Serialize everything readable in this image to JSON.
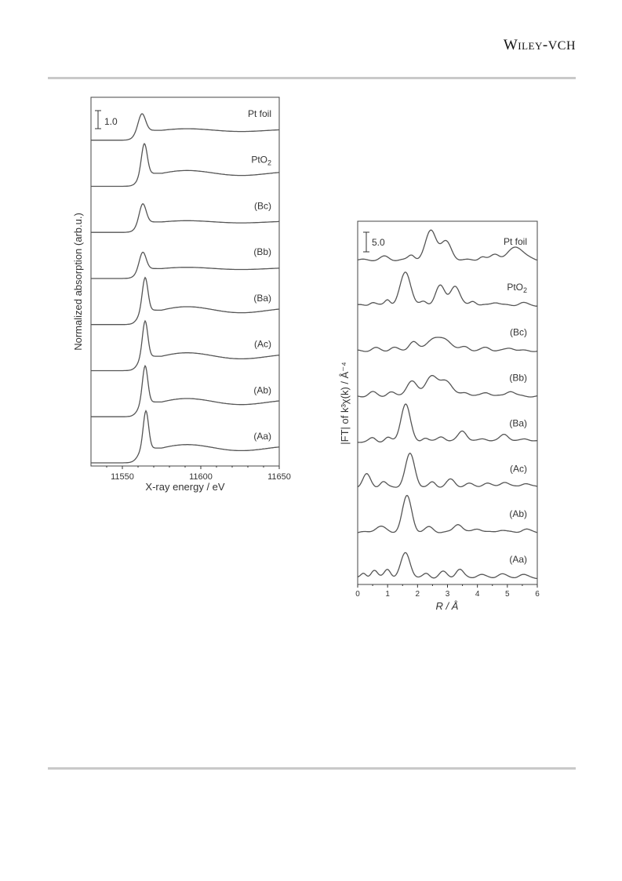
{
  "header": {
    "publisher_a": "Wiley",
    "publisher_sep": "-",
    "publisher_b": "VCH"
  },
  "chart_data": [
    {
      "type": "line",
      "xlabel": "X-ray energy / eV",
      "ylabel": "Normalized  absorption  (arb.u.)",
      "xlim": [
        11530,
        11650
      ],
      "xticks": [
        11550,
        11600,
        11650
      ],
      "scale_bar": "1.0",
      "grid": false,
      "line_color": "#555555",
      "series": [
        {
          "name": "Pt foil",
          "pre": 0.0,
          "edge": 11558,
          "peak": 0.95,
          "peak_x": 11562.5,
          "peak_w": 3.2,
          "post": 0.55,
          "osc": 0.1
        },
        {
          "name": "PtO",
          "sub": "2",
          "pre": 0.0,
          "edge": 11560,
          "peak": 1.7,
          "peak_x": 11564,
          "peak_w": 2.6,
          "post": 0.72,
          "osc": 0.18
        },
        {
          "name": "(Bc)",
          "pre": 0.0,
          "edge": 11559,
          "peak": 1.05,
          "peak_x": 11563,
          "peak_w": 3.0,
          "post": 0.58,
          "osc": 0.08
        },
        {
          "name": "(Bb)",
          "pre": 0.0,
          "edge": 11559,
          "peak": 0.95,
          "peak_x": 11563,
          "peak_w": 3.0,
          "post": 0.55,
          "osc": 0.08
        },
        {
          "name": "(Ba)",
          "pre": 0.0,
          "edge": 11560,
          "peak": 1.85,
          "peak_x": 11564.5,
          "peak_w": 2.5,
          "post": 0.8,
          "osc": 0.22
        },
        {
          "name": "(Ac)",
          "pre": 0.0,
          "edge": 11560,
          "peak": 2.0,
          "peak_x": 11564.5,
          "peak_w": 2.4,
          "post": 0.8,
          "osc": 0.22
        },
        {
          "name": "(Ab)",
          "pre": 0.0,
          "edge": 11560,
          "peak": 2.05,
          "peak_x": 11564.5,
          "peak_w": 2.4,
          "post": 0.82,
          "osc": 0.22
        },
        {
          "name": "(Aa)",
          "pre": 0.0,
          "edge": 11560,
          "peak": 2.1,
          "peak_x": 11565,
          "peak_w": 2.4,
          "post": 0.82,
          "osc": 0.22
        }
      ]
    },
    {
      "type": "line",
      "xlabel": "R / Å",
      "ylabel": "|FT| of k³χ(k) / Å⁻⁴",
      "xlim": [
        0,
        6
      ],
      "xticks": [
        0,
        1,
        2,
        3,
        4,
        5,
        6
      ],
      "scale_bar": "5.0",
      "grid": false,
      "line_color": "#555555",
      "series": [
        {
          "name": "Pt foil",
          "peaks": [
            [
              0.9,
              1.0,
              0.2
            ],
            [
              1.8,
              1.6,
              0.15
            ],
            [
              2.45,
              9.0,
              0.25
            ],
            [
              2.95,
              5.5,
              0.25
            ],
            [
              4.6,
              1.8,
              0.2
            ],
            [
              5.3,
              4.0,
              0.35
            ],
            [
              4.15,
              1.0,
              0.15
            ]
          ]
        },
        {
          "name": "PtO",
          "sub": "2",
          "peaks": [
            [
              0.5,
              1.0,
              0.15
            ],
            [
              1.0,
              1.8,
              0.13
            ],
            [
              1.6,
              10.0,
              0.25
            ],
            [
              2.2,
              1.0,
              0.15
            ],
            [
              2.75,
              6.0,
              0.22
            ],
            [
              3.25,
              6.0,
              0.22
            ],
            [
              3.85,
              1.4,
              0.15
            ],
            [
              4.6,
              1.0,
              0.2
            ],
            [
              5.5,
              0.8,
              0.2
            ]
          ]
        },
        {
          "name": "(Bc)",
          "peaks": [
            [
              0.6,
              0.8,
              0.18
            ],
            [
              1.2,
              1.0,
              0.18
            ],
            [
              1.85,
              2.8,
              0.2
            ],
            [
              2.5,
              3.5,
              0.3
            ],
            [
              2.95,
              3.2,
              0.3
            ],
            [
              3.6,
              1.2,
              0.2
            ],
            [
              4.3,
              1.0,
              0.2
            ],
            [
              5.1,
              0.9,
              0.2
            ]
          ]
        },
        {
          "name": "(Bb)",
          "peaks": [
            [
              0.5,
              1.2,
              0.18
            ],
            [
              1.1,
              1.2,
              0.18
            ],
            [
              1.8,
              4.5,
              0.25
            ],
            [
              2.45,
              6.0,
              0.28
            ],
            [
              2.95,
              4.8,
              0.28
            ],
            [
              3.6,
              1.2,
              0.2
            ],
            [
              4.3,
              1.2,
              0.2
            ],
            [
              5.1,
              1.6,
              0.2
            ]
          ]
        },
        {
          "name": "(Ba)",
          "peaks": [
            [
              0.5,
              1.0,
              0.15
            ],
            [
              1.0,
              1.2,
              0.15
            ],
            [
              1.6,
              11.5,
              0.22
            ],
            [
              2.25,
              1.2,
              0.15
            ],
            [
              2.8,
              1.6,
              0.18
            ],
            [
              3.5,
              3.4,
              0.2
            ],
            [
              4.2,
              1.0,
              0.2
            ],
            [
              4.9,
              2.4,
              0.2
            ],
            [
              5.6,
              1.0,
              0.2
            ]
          ]
        },
        {
          "name": "(Ac)",
          "peaks": [
            [
              0.3,
              3.8,
              0.18
            ],
            [
              0.85,
              1.6,
              0.15
            ],
            [
              1.75,
              10.0,
              0.22
            ],
            [
              2.5,
              1.4,
              0.15
            ],
            [
              3.1,
              2.2,
              0.2
            ],
            [
              3.7,
              1.0,
              0.2
            ],
            [
              4.3,
              1.2,
              0.2
            ],
            [
              4.9,
              1.6,
              0.2
            ],
            [
              5.6,
              1.2,
              0.2
            ]
          ]
        },
        {
          "name": "(Ab)",
          "peaks": [
            [
              0.75,
              1.8,
              0.25
            ],
            [
              1.65,
              11.0,
              0.22
            ],
            [
              2.4,
              1.6,
              0.2
            ],
            [
              3.35,
              2.6,
              0.2
            ],
            [
              4.0,
              1.2,
              0.2
            ],
            [
              4.8,
              0.8,
              0.2
            ],
            [
              5.6,
              1.0,
              0.2
            ]
          ]
        },
        {
          "name": "(Aa)",
          "peaks": [
            [
              0.2,
              1.2,
              0.12
            ],
            [
              0.55,
              2.4,
              0.15
            ],
            [
              1.0,
              2.6,
              0.15
            ],
            [
              1.6,
              7.5,
              0.22
            ],
            [
              2.3,
              1.2,
              0.15
            ],
            [
              2.85,
              1.8,
              0.18
            ],
            [
              3.4,
              2.6,
              0.18
            ],
            [
              4.1,
              1.0,
              0.2
            ],
            [
              4.8,
              1.2,
              0.2
            ],
            [
              5.5,
              1.0,
              0.2
            ]
          ]
        }
      ]
    }
  ]
}
